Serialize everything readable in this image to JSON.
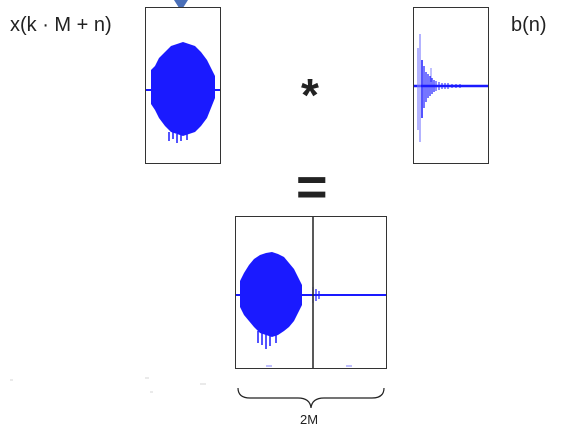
{
  "labels": {
    "input_signal": "x(k · M + n)",
    "impulse_response": "b(n)",
    "convolution_operator": "*",
    "equals_operator": "=",
    "block_length": "2M"
  },
  "colors": {
    "signal": "#1a1aff",
    "signal_light": "#8080ff",
    "frame": "#333333",
    "text": "#222222",
    "arrow": "#4a6fb8"
  }
}
